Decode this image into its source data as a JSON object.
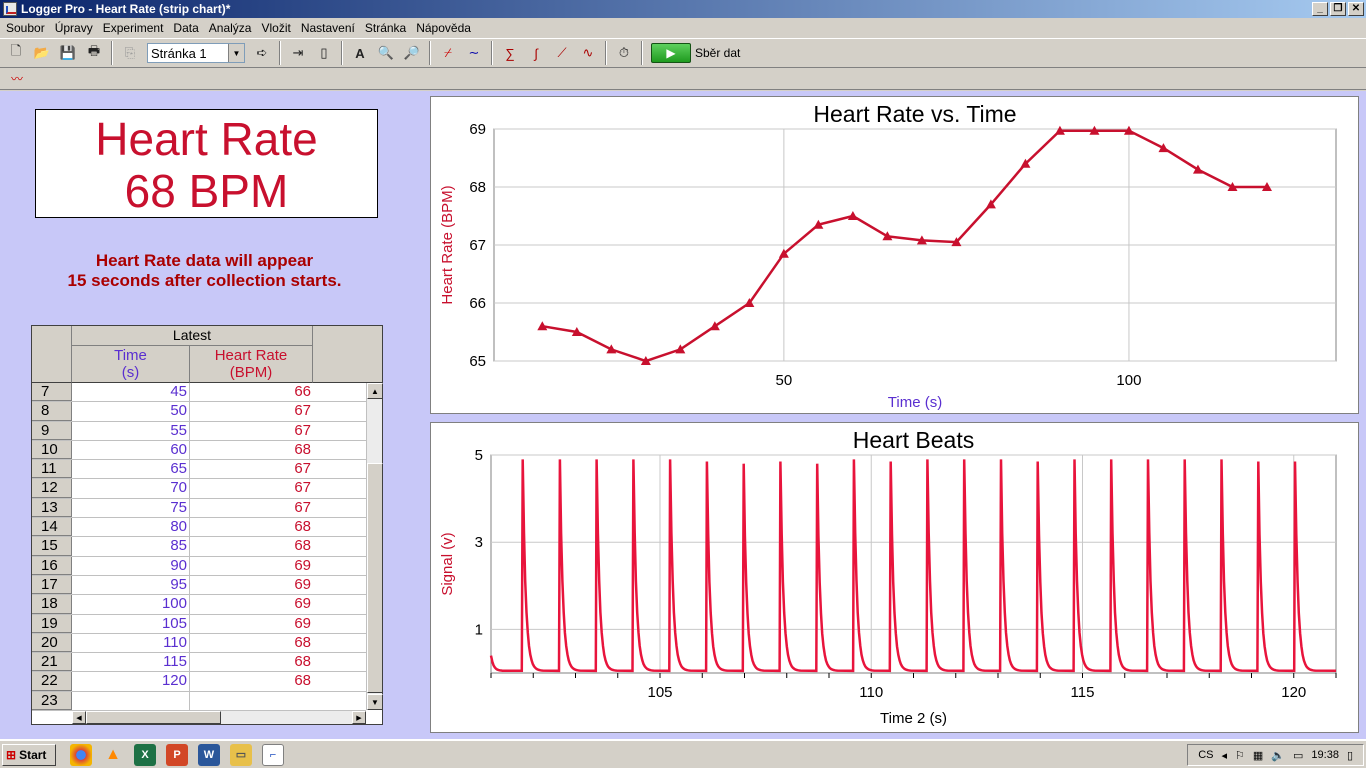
{
  "window": {
    "title": "Logger Pro - Heart Rate (strip chart)*"
  },
  "menu": [
    "Soubor",
    "Úpravy",
    "Experiment",
    "Data",
    "Analýza",
    "Vložit",
    "Nastavení",
    "Stránka",
    "Nápověda"
  ],
  "toolbar": {
    "page_select": "Stránka 1",
    "collect_label": "Sběr dat"
  },
  "meter": {
    "line1": "Heart Rate",
    "line2": "68 BPM"
  },
  "note": {
    "line1": "Heart Rate data will appear",
    "line2": "15 seconds after collection starts."
  },
  "table": {
    "group_header": "Latest",
    "col_time": "Time",
    "col_time_unit": "(s)",
    "col_hr": "Heart Rate",
    "col_hr_unit": "(BPM)",
    "rows": [
      {
        "n": "7",
        "t": "45",
        "hr": "66"
      },
      {
        "n": "8",
        "t": "50",
        "hr": "67"
      },
      {
        "n": "9",
        "t": "55",
        "hr": "67"
      },
      {
        "n": "10",
        "t": "60",
        "hr": "68"
      },
      {
        "n": "11",
        "t": "65",
        "hr": "67"
      },
      {
        "n": "12",
        "t": "70",
        "hr": "67"
      },
      {
        "n": "13",
        "t": "75",
        "hr": "67"
      },
      {
        "n": "14",
        "t": "80",
        "hr": "68"
      },
      {
        "n": "15",
        "t": "85",
        "hr": "68"
      },
      {
        "n": "16",
        "t": "90",
        "hr": "69"
      },
      {
        "n": "17",
        "t": "95",
        "hr": "69"
      },
      {
        "n": "18",
        "t": "100",
        "hr": "69"
      },
      {
        "n": "19",
        "t": "105",
        "hr": "69"
      },
      {
        "n": "20",
        "t": "110",
        "hr": "68"
      },
      {
        "n": "21",
        "t": "115",
        "hr": "68"
      },
      {
        "n": "22",
        "t": "120",
        "hr": "68"
      },
      {
        "n": "23",
        "t": "",
        "hr": ""
      }
    ]
  },
  "chart_data": [
    {
      "type": "line",
      "title": "Heart Rate vs. Time",
      "xlabel": "Time (s)",
      "ylabel": "Heart Rate (BPM)",
      "xlim": [
        8,
        130
      ],
      "ylim": [
        65,
        69
      ],
      "xticks": [
        50,
        100
      ],
      "yticks": [
        65,
        66,
        67,
        68,
        69
      ],
      "grid": true,
      "color": "#c8102e",
      "series": [
        {
          "x": [
            15,
            20,
            25,
            30,
            35,
            40,
            45,
            50,
            55,
            60,
            65,
            70,
            75,
            80,
            85,
            90,
            95,
            100,
            105,
            110,
            115,
            120
          ],
          "values": [
            65.6,
            65.5,
            65.2,
            65.0,
            65.2,
            65.6,
            66.0,
            66.85,
            67.35,
            67.5,
            67.15,
            67.08,
            67.05,
            67.7,
            68.4,
            68.97,
            68.97,
            68.97,
            68.67,
            68.3,
            68.0,
            68.0
          ]
        }
      ]
    },
    {
      "type": "line",
      "title": "Heart Beats",
      "xlabel": "Time 2 (s)",
      "ylabel": "Signal (v)",
      "xlim": [
        101,
        121
      ],
      "ylim": [
        0,
        5
      ],
      "xticks": [
        105,
        110,
        115,
        120
      ],
      "yticks": [
        1,
        3,
        5
      ],
      "grid": true,
      "color": "#e8143c",
      "baseline": 0.05,
      "beats": {
        "t": [
          101.75,
          102.63,
          103.5,
          104.37,
          105.24,
          106.11,
          106.98,
          107.85,
          108.72,
          109.59,
          110.46,
          111.33,
          112.2,
          113.07,
          113.94,
          114.81,
          115.68,
          116.55,
          117.42,
          118.29,
          119.16,
          120.03
        ],
        "peak": [
          4.9,
          4.9,
          4.9,
          4.9,
          4.9,
          4.85,
          4.8,
          4.85,
          4.8,
          4.9,
          4.85,
          4.9,
          4.9,
          4.9,
          4.85,
          4.9,
          4.9,
          4.9,
          4.9,
          4.9,
          4.85,
          4.85
        ]
      }
    }
  ],
  "taskbar": {
    "start": "Start",
    "lang": "CS",
    "clock": "19:38"
  }
}
